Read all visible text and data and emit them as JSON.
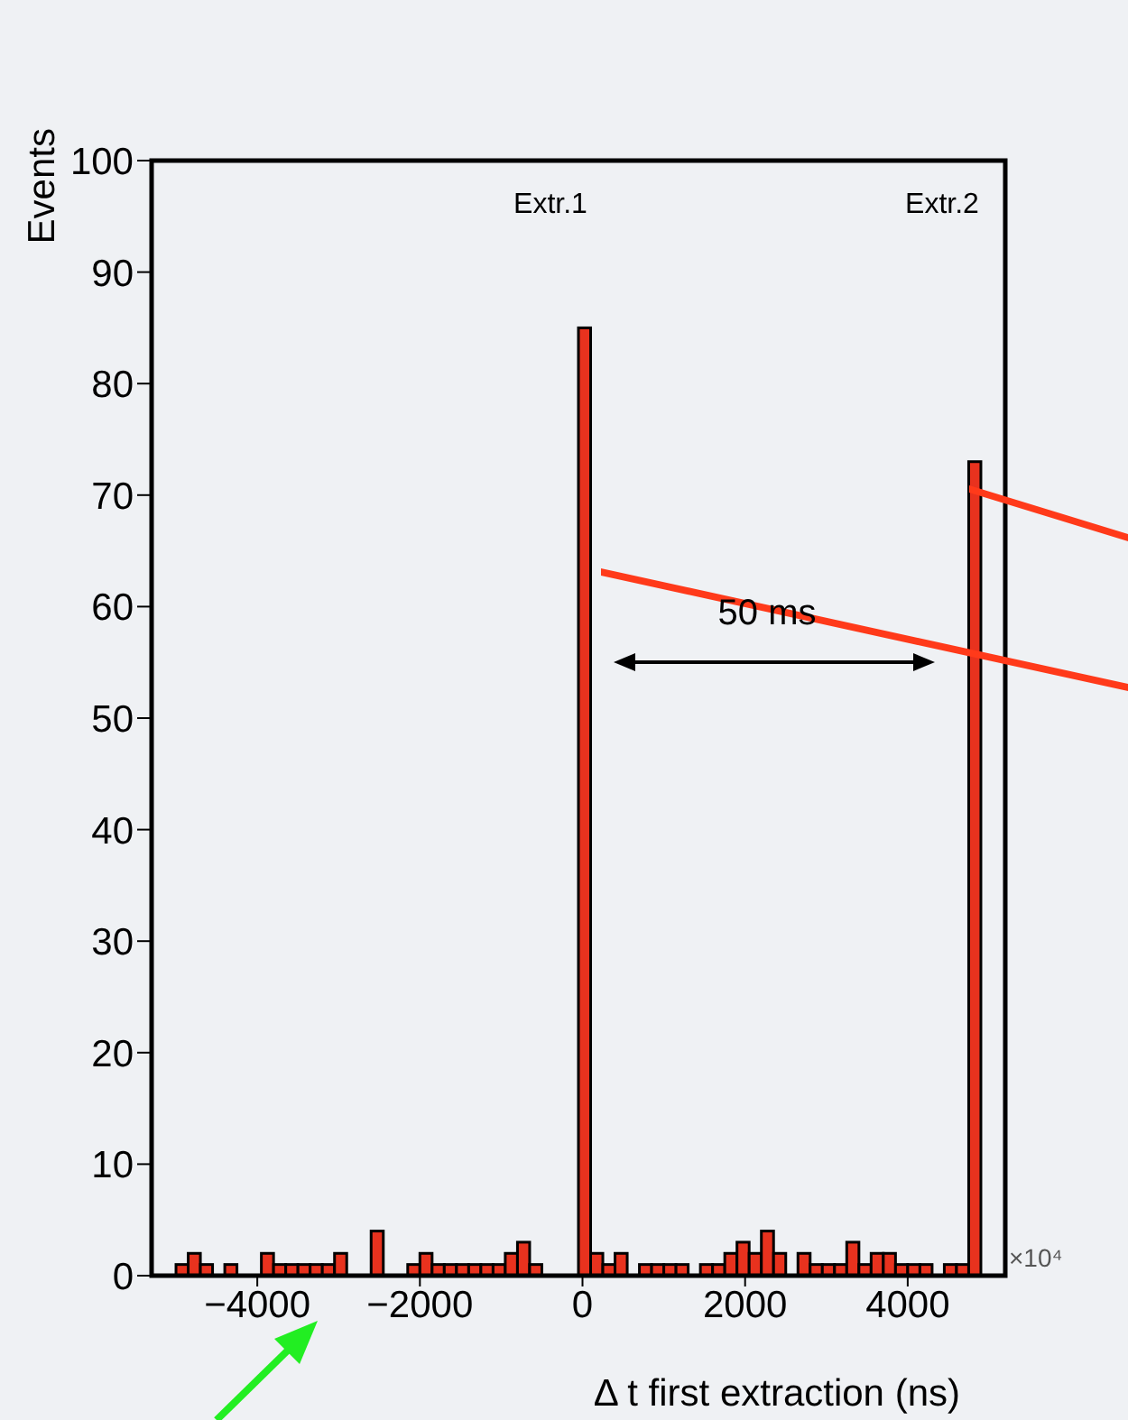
{
  "chart_data": {
    "type": "histogram",
    "xlabel": "Δ t first extraction (ns)",
    "ylabel": "Events",
    "bins": [
      -5300,
      -5150,
      -5000,
      -4850,
      -4700,
      -4550,
      -4400,
      -4250,
      -4100,
      -3950,
      -3800,
      -3650,
      -3500,
      -3350,
      -3200,
      -3050,
      -2900,
      -2750,
      -2600,
      -2450,
      -2300,
      -2150,
      -2000,
      -1850,
      -1700,
      -1550,
      -1400,
      -1250,
      -1100,
      -950,
      -800,
      -650,
      -500,
      -350,
      -200,
      -50,
      100,
      250,
      400,
      550,
      700,
      850,
      1000,
      1150,
      1300,
      1450,
      1600,
      1750,
      1900,
      2050,
      2200,
      2350,
      2500,
      2650,
      2800,
      2950,
      3100,
      3250,
      3400,
      3550,
      3700,
      3850,
      4000,
      4150,
      4300,
      4450,
      4600,
      4750,
      4900,
      5050,
      5200
    ],
    "values": [
      0,
      0,
      1,
      2,
      1,
      0,
      1,
      0,
      0,
      2,
      1,
      1,
      1,
      1,
      1,
      2,
      0,
      0,
      4,
      0,
      0,
      1,
      2,
      1,
      1,
      1,
      1,
      1,
      1,
      2,
      3,
      1,
      0,
      0,
      0,
      85,
      2,
      1,
      2,
      0,
      1,
      1,
      1,
      1,
      0,
      1,
      1,
      2,
      3,
      2,
      4,
      2,
      0,
      2,
      1,
      1,
      1,
      3,
      1,
      2,
      2,
      1,
      1,
      1,
      0,
      1,
      1,
      73,
      0,
      0
    ],
    "color": "#e8321e",
    "xlim": [
      -5300,
      5200
    ],
    "xticks": [
      {
        "value": -4000,
        "label": "−4000"
      },
      {
        "value": -2000,
        "label": "−2000"
      },
      0,
      2000,
      4000
    ],
    "ylim": [
      0,
      100
    ],
    "yticks": [
      0,
      10,
      20,
      30,
      40,
      50,
      60,
      70,
      80,
      90,
      100
    ],
    "annotations": [
      "Extr.1",
      "Extr.2",
      "50 ms",
      "×10⁴"
    ]
  }
}
